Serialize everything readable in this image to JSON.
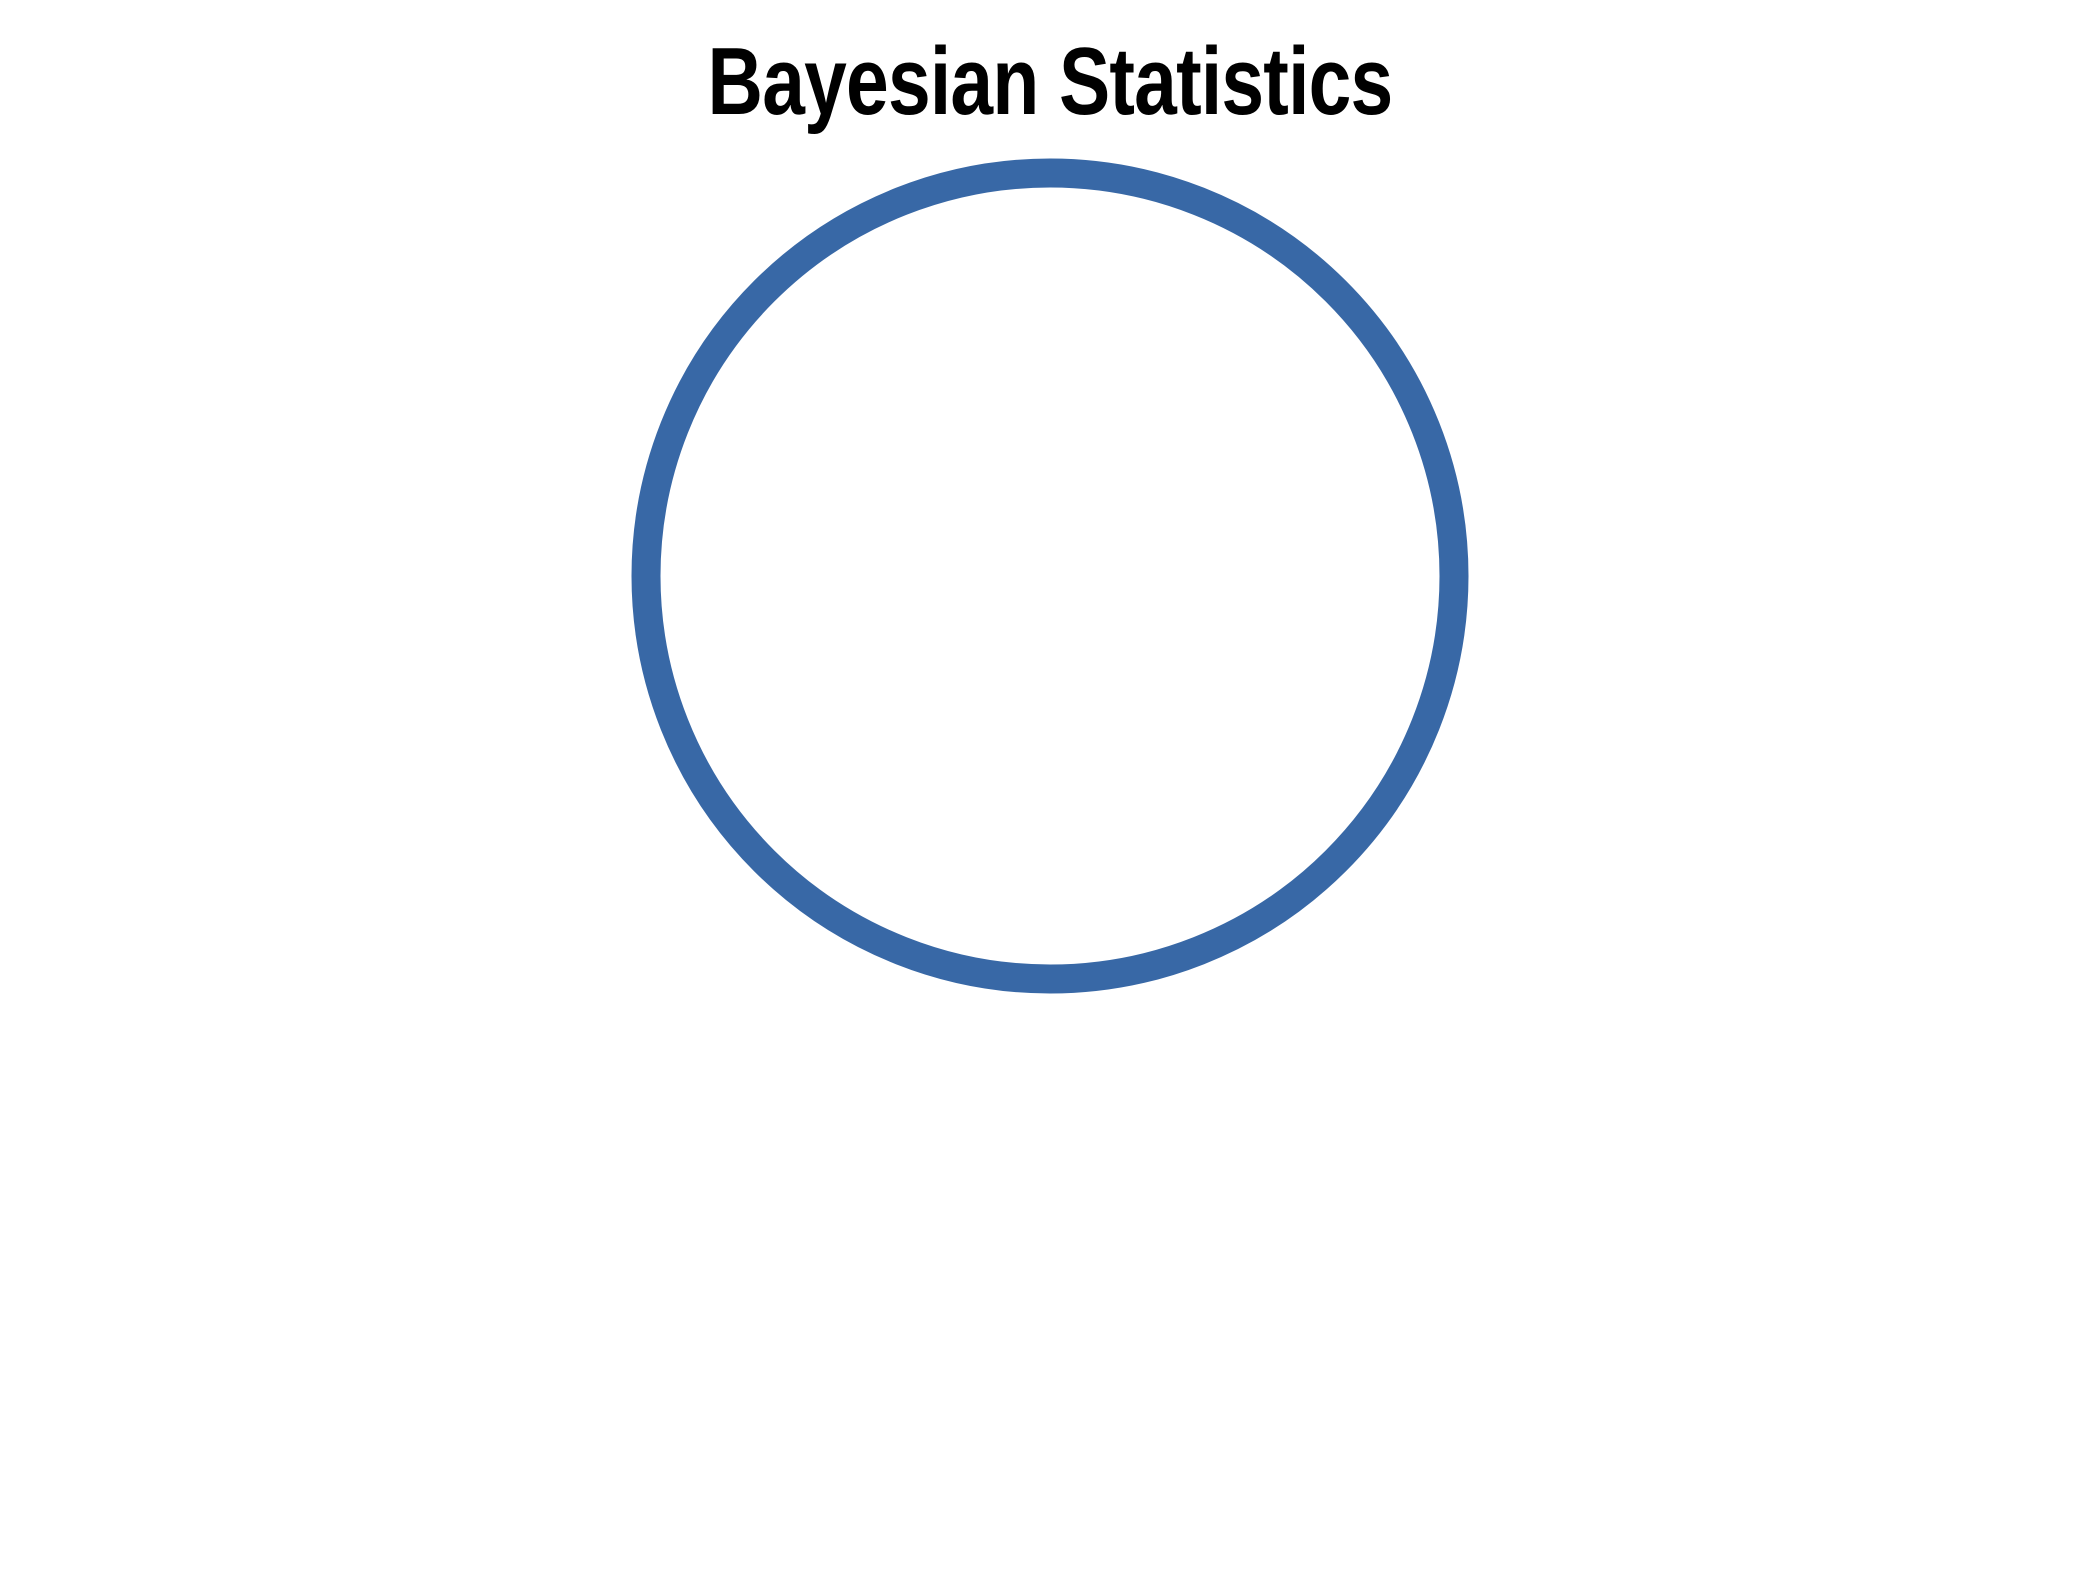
{
  "diagram": {
    "title": "Bayesian Statistics",
    "shape": "circle-outline",
    "colors": {
      "ring_stroke": "#3868A6",
      "title_text": "#000000",
      "background": "#ffffff"
    }
  }
}
